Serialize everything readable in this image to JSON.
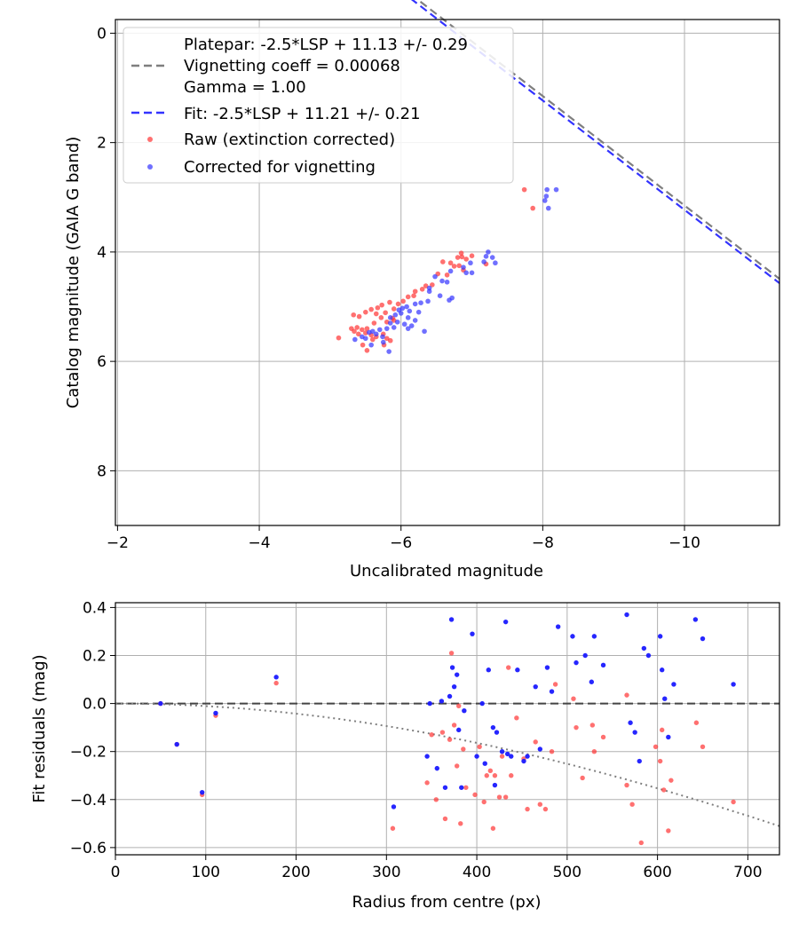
{
  "chart_data": [
    {
      "type": "scatter",
      "xlabel": "Uncalibrated magnitude",
      "ylabel": "Catalog magnitude (GAIA G band)",
      "xlim": [
        -1.97,
        -11.34
      ],
      "ylim": [
        -0.25,
        9.0
      ],
      "x_ticks": [
        -2,
        -4,
        -6,
        -8,
        -10
      ],
      "y_ticks": [
        0,
        2,
        4,
        6,
        8
      ],
      "x_tick_labels": [
        "−2",
        "−4",
        "−6",
        "−8",
        "−10"
      ],
      "y_tick_labels": [
        "0",
        "2",
        "4",
        "6",
        "8"
      ],
      "grid": true,
      "legend_position": "top-left",
      "legend": {
        "platepar_label": "Platepar: -2.5*LSP + 11.13 +/- 0.29",
        "vignetting_label": "Vignetting coeff = 0.00068",
        "gamma_label": "Gamma = 1.00",
        "fit_label": "Fit: -2.5*LSP + 11.21 +/- 0.21",
        "raw_label": "Raw (extinction corrected)",
        "corrected_label": "Corrected for vignetting"
      },
      "lines": [
        {
          "name": "Platepar",
          "slope": -2.5,
          "intercept": 11.13,
          "color": "#7f7f7f"
        },
        {
          "name": "Fit",
          "slope": -2.5,
          "intercept": 11.21,
          "color": "#3333ff"
        }
      ],
      "raw_color": "#ff3333",
      "corrected_color": "#3333ff",
      "raw_points": [
        [
          -7.74,
          2.86
        ],
        [
          -7.86,
          3.2
        ],
        [
          -6.85,
          4.02
        ],
        [
          -7.0,
          4.07
        ],
        [
          -6.86,
          4.09
        ],
        [
          -6.8,
          4.1
        ],
        [
          -6.92,
          4.13
        ],
        [
          -6.59,
          4.18
        ],
        [
          -6.7,
          4.2
        ],
        [
          -6.82,
          4.25
        ],
        [
          -6.75,
          4.26
        ],
        [
          -7.2,
          4.22
        ],
        [
          -6.88,
          4.33
        ],
        [
          -6.52,
          4.4
        ],
        [
          -6.65,
          4.42
        ],
        [
          -6.44,
          4.6
        ],
        [
          -6.35,
          4.62
        ],
        [
          -6.3,
          4.68
        ],
        [
          -6.2,
          4.72
        ],
        [
          -6.18,
          4.8
        ],
        [
          -6.1,
          4.82
        ],
        [
          -6.03,
          4.9
        ],
        [
          -5.96,
          4.95
        ],
        [
          -5.84,
          4.92
        ],
        [
          -5.73,
          4.97
        ],
        [
          -5.67,
          5.02
        ],
        [
          -5.9,
          5.04
        ],
        [
          -5.58,
          5.05
        ],
        [
          -5.5,
          5.1
        ],
        [
          -5.78,
          5.11
        ],
        [
          -5.65,
          5.13
        ],
        [
          -5.33,
          5.15
        ],
        [
          -5.41,
          5.18
        ],
        [
          -5.72,
          5.2
        ],
        [
          -5.88,
          5.21
        ],
        [
          -5.9,
          5.25
        ],
        [
          -5.8,
          5.28
        ],
        [
          -5.62,
          5.3
        ],
        [
          -5.52,
          5.4
        ],
        [
          -5.45,
          5.42
        ],
        [
          -5.38,
          5.38
        ],
        [
          -5.3,
          5.4
        ],
        [
          -5.34,
          5.45
        ],
        [
          -5.4,
          5.5
        ],
        [
          -5.5,
          5.48
        ],
        [
          -5.58,
          5.52
        ],
        [
          -5.65,
          5.55
        ],
        [
          -5.75,
          5.5
        ],
        [
          -5.8,
          5.58
        ],
        [
          -5.12,
          5.57
        ],
        [
          -5.6,
          5.6
        ],
        [
          -5.85,
          5.62
        ],
        [
          -5.46,
          5.7
        ],
        [
          -5.52,
          5.8
        ],
        [
          -5.76,
          5.7
        ]
      ],
      "corrected_points": [
        [
          -8.06,
          2.86
        ],
        [
          -8.19,
          2.86
        ],
        [
          -8.05,
          2.98
        ],
        [
          -8.03,
          3.06
        ],
        [
          -8.08,
          3.2
        ],
        [
          -7.23,
          4.0
        ],
        [
          -7.2,
          4.08
        ],
        [
          -7.29,
          4.1
        ],
        [
          -7.33,
          4.2
        ],
        [
          -7.17,
          4.18
        ],
        [
          -6.98,
          4.2
        ],
        [
          -6.7,
          4.35
        ],
        [
          -6.92,
          4.38
        ],
        [
          -7.0,
          4.38
        ],
        [
          -6.88,
          4.28
        ],
        [
          -6.48,
          4.45
        ],
        [
          -6.58,
          4.53
        ],
        [
          -6.65,
          4.55
        ],
        [
          -6.4,
          4.66
        ],
        [
          -6.4,
          4.72
        ],
        [
          -6.55,
          4.8
        ],
        [
          -6.72,
          4.84
        ],
        [
          -6.68,
          4.88
        ],
        [
          -6.38,
          4.9
        ],
        [
          -6.28,
          4.93
        ],
        [
          -6.2,
          4.95
        ],
        [
          -6.08,
          5.0
        ],
        [
          -6.02,
          5.03
        ],
        [
          -5.97,
          5.06
        ],
        [
          -6.12,
          5.08
        ],
        [
          -6.25,
          5.1
        ],
        [
          -6.0,
          5.12
        ],
        [
          -5.92,
          5.15
        ],
        [
          -5.85,
          5.2
        ],
        [
          -6.1,
          5.2
        ],
        [
          -6.2,
          5.25
        ],
        [
          -5.95,
          5.28
        ],
        [
          -5.85,
          5.3
        ],
        [
          -6.05,
          5.32
        ],
        [
          -6.15,
          5.35
        ],
        [
          -5.9,
          5.38
        ],
        [
          -5.8,
          5.4
        ],
        [
          -5.7,
          5.42
        ],
        [
          -5.6,
          5.45
        ],
        [
          -5.55,
          5.47
        ],
        [
          -5.65,
          5.5
        ],
        [
          -5.74,
          5.55
        ],
        [
          -5.45,
          5.55
        ],
        [
          -5.5,
          5.58
        ],
        [
          -5.35,
          5.6
        ],
        [
          -5.75,
          5.65
        ],
        [
          -5.83,
          5.82
        ],
        [
          -5.58,
          5.7
        ],
        [
          -6.1,
          5.4
        ],
        [
          -6.33,
          5.45
        ]
      ]
    },
    {
      "type": "scatter",
      "xlabel": "Radius from centre (px)",
      "ylabel": "Fit residuals (mag)",
      "xlim": [
        0,
        735
      ],
      "ylim": [
        -0.63,
        0.42
      ],
      "x_ticks": [
        0,
        100,
        200,
        300,
        400,
        500,
        600,
        700
      ],
      "y_ticks": [
        -0.6,
        -0.4,
        -0.2,
        0.0,
        0.2,
        0.4
      ],
      "x_tick_labels": [
        "0",
        "100",
        "200",
        "300",
        "400",
        "500",
        "600",
        "700"
      ],
      "y_tick_labels": [
        "−0.6",
        "−0.4",
        "−0.2",
        "0.0",
        "0.2",
        "0.4"
      ],
      "grid": true,
      "zero_line_color": "#444444",
      "vignetting_curve": {
        "coeff": 0.00068,
        "color": "#7f7f7f"
      },
      "raw_points": [
        [
          50,
          0.0
        ],
        [
          68,
          -0.17
        ],
        [
          96,
          -0.38
        ],
        [
          111,
          -0.05
        ],
        [
          178,
          0.085
        ],
        [
          307,
          -0.52
        ],
        [
          345,
          -0.33
        ],
        [
          350,
          -0.13
        ],
        [
          355,
          -0.4
        ],
        [
          362,
          -0.12
        ],
        [
          365,
          -0.48
        ],
        [
          370,
          -0.15
        ],
        [
          372,
          0.21
        ],
        [
          375,
          -0.09
        ],
        [
          378,
          -0.26
        ],
        [
          380,
          -0.01
        ],
        [
          382,
          -0.5
        ],
        [
          385,
          -0.19
        ],
        [
          388,
          -0.35
        ],
        [
          398,
          -0.38
        ],
        [
          403,
          -0.18
        ],
        [
          408,
          -0.41
        ],
        [
          411,
          -0.3
        ],
        [
          415,
          -0.28
        ],
        [
          418,
          -0.52
        ],
        [
          420,
          -0.3
        ],
        [
          425,
          -0.39
        ],
        [
          428,
          -0.22
        ],
        [
          432,
          -0.39
        ],
        [
          435,
          0.15
        ],
        [
          438,
          -0.3
        ],
        [
          444,
          -0.06
        ],
        [
          452,
          -0.23
        ],
        [
          456,
          -0.44
        ],
        [
          465,
          -0.16
        ],
        [
          470,
          -0.42
        ],
        [
          476,
          -0.44
        ],
        [
          483,
          -0.2
        ],
        [
          487,
          0.08
        ],
        [
          507,
          0.02
        ],
        [
          510,
          -0.1
        ],
        [
          517,
          -0.31
        ],
        [
          528,
          -0.09
        ],
        [
          530,
          -0.2
        ],
        [
          540,
          -0.14
        ],
        [
          566,
          0.035
        ],
        [
          566,
          -0.34
        ],
        [
          572,
          -0.42
        ],
        [
          582,
          -0.58
        ],
        [
          598,
          -0.18
        ],
        [
          603,
          -0.24
        ],
        [
          605,
          -0.11
        ],
        [
          607,
          -0.36
        ],
        [
          612,
          -0.53
        ],
        [
          615,
          -0.32
        ],
        [
          643,
          -0.08
        ],
        [
          650,
          -0.18
        ],
        [
          684,
          -0.41
        ]
      ],
      "corrected_points": [
        [
          50,
          0.0
        ],
        [
          68,
          -0.17
        ],
        [
          96,
          -0.37
        ],
        [
          111,
          -0.04
        ],
        [
          178,
          0.11
        ],
        [
          308,
          -0.43
        ],
        [
          345,
          -0.22
        ],
        [
          348,
          0.0
        ],
        [
          356,
          -0.27
        ],
        [
          361,
          0.01
        ],
        [
          365,
          -0.35
        ],
        [
          370,
          0.03
        ],
        [
          372,
          0.35
        ],
        [
          373,
          0.15
        ],
        [
          375,
          0.07
        ],
        [
          378,
          0.12
        ],
        [
          380,
          -0.11
        ],
        [
          383,
          -0.35
        ],
        [
          386,
          -0.03
        ],
        [
          395,
          0.29
        ],
        [
          400,
          -0.22
        ],
        [
          406,
          0.0
        ],
        [
          409,
          -0.25
        ],
        [
          413,
          0.14
        ],
        [
          418,
          -0.1
        ],
        [
          420,
          -0.34
        ],
        [
          422,
          -0.12
        ],
        [
          428,
          -0.2
        ],
        [
          432,
          0.34
        ],
        [
          434,
          -0.21
        ],
        [
          438,
          -0.22
        ],
        [
          445,
          0.14
        ],
        [
          452,
          -0.24
        ],
        [
          456,
          -0.22
        ],
        [
          465,
          0.07
        ],
        [
          470,
          -0.19
        ],
        [
          478,
          0.15
        ],
        [
          483,
          0.05
        ],
        [
          490,
          0.32
        ],
        [
          506,
          0.28
        ],
        [
          510,
          0.17
        ],
        [
          520,
          0.2
        ],
        [
          527,
          0.09
        ],
        [
          530,
          0.28
        ],
        [
          540,
          0.16
        ],
        [
          566,
          0.37
        ],
        [
          570,
          -0.08
        ],
        [
          575,
          -0.12
        ],
        [
          580,
          -0.24
        ],
        [
          585,
          0.23
        ],
        [
          590,
          0.2
        ],
        [
          603,
          0.28
        ],
        [
          605,
          0.14
        ],
        [
          608,
          0.02
        ],
        [
          612,
          -0.14
        ],
        [
          618,
          0.08
        ],
        [
          642,
          0.35
        ],
        [
          650,
          0.27
        ],
        [
          684,
          0.08
        ]
      ]
    }
  ]
}
